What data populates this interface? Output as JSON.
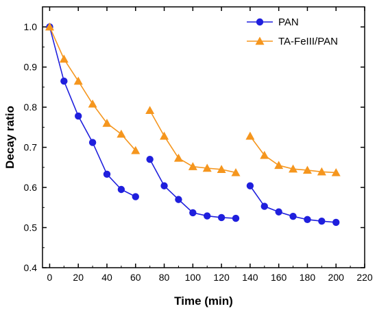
{
  "chart_data": {
    "type": "line",
    "title": "",
    "xlabel": "Time (min)",
    "ylabel": "Decay ratio",
    "xlim": [
      -5,
      220
    ],
    "ylim": [
      0.4,
      1.05
    ],
    "xticks": [
      0,
      20,
      40,
      60,
      80,
      100,
      120,
      140,
      160,
      180,
      200,
      220
    ],
    "yticks": [
      0.4,
      0.5,
      0.6,
      0.7,
      0.8,
      0.9,
      1.0
    ],
    "xtick_labels": [
      "0",
      "20",
      "40",
      "60",
      "80",
      "100",
      "120",
      "140",
      "160",
      "180",
      "200",
      "220"
    ],
    "ytick_labels": [
      "0.4",
      "0.5",
      "0.6",
      "0.7",
      "0.8",
      "0.9",
      "1.0"
    ],
    "grid": false,
    "legend_position": "top-right",
    "series": [
      {
        "name": "PAN",
        "color": "#1f1fdd",
        "marker": "circle",
        "segments": [
          {
            "x": [
              0,
              10,
              20,
              30,
              40,
              50,
              60
            ],
            "y": [
              1.0,
              0.865,
              0.778,
              0.712,
              0.633,
              0.595,
              0.577
            ]
          },
          {
            "x": [
              70,
              80,
              90,
              100,
              110,
              120,
              130
            ],
            "y": [
              0.67,
              0.604,
              0.57,
              0.537,
              0.529,
              0.525,
              0.523
            ]
          },
          {
            "x": [
              140,
              150,
              160,
              170,
              180,
              190,
              200
            ],
            "y": [
              0.604,
              0.553,
              0.539,
              0.528,
              0.52,
              0.516,
              0.513
            ]
          }
        ]
      },
      {
        "name": "TA-FeIII/PAN",
        "color": "#f5961e",
        "marker": "triangle",
        "segments": [
          {
            "x": [
              0,
              10,
              20,
              30,
              40,
              50,
              60
            ],
            "y": [
              1.0,
              0.92,
              0.865,
              0.808,
              0.76,
              0.733,
              0.692
            ]
          },
          {
            "x": [
              70,
              80,
              90,
              100,
              110,
              120,
              130
            ],
            "y": [
              0.792,
              0.728,
              0.673,
              0.652,
              0.648,
              0.645,
              0.637
            ]
          },
          {
            "x": [
              140,
              150,
              160,
              170,
              180,
              190,
              200
            ],
            "y": [
              0.728,
              0.68,
              0.655,
              0.646,
              0.643,
              0.639,
              0.637
            ]
          }
        ]
      }
    ]
  }
}
